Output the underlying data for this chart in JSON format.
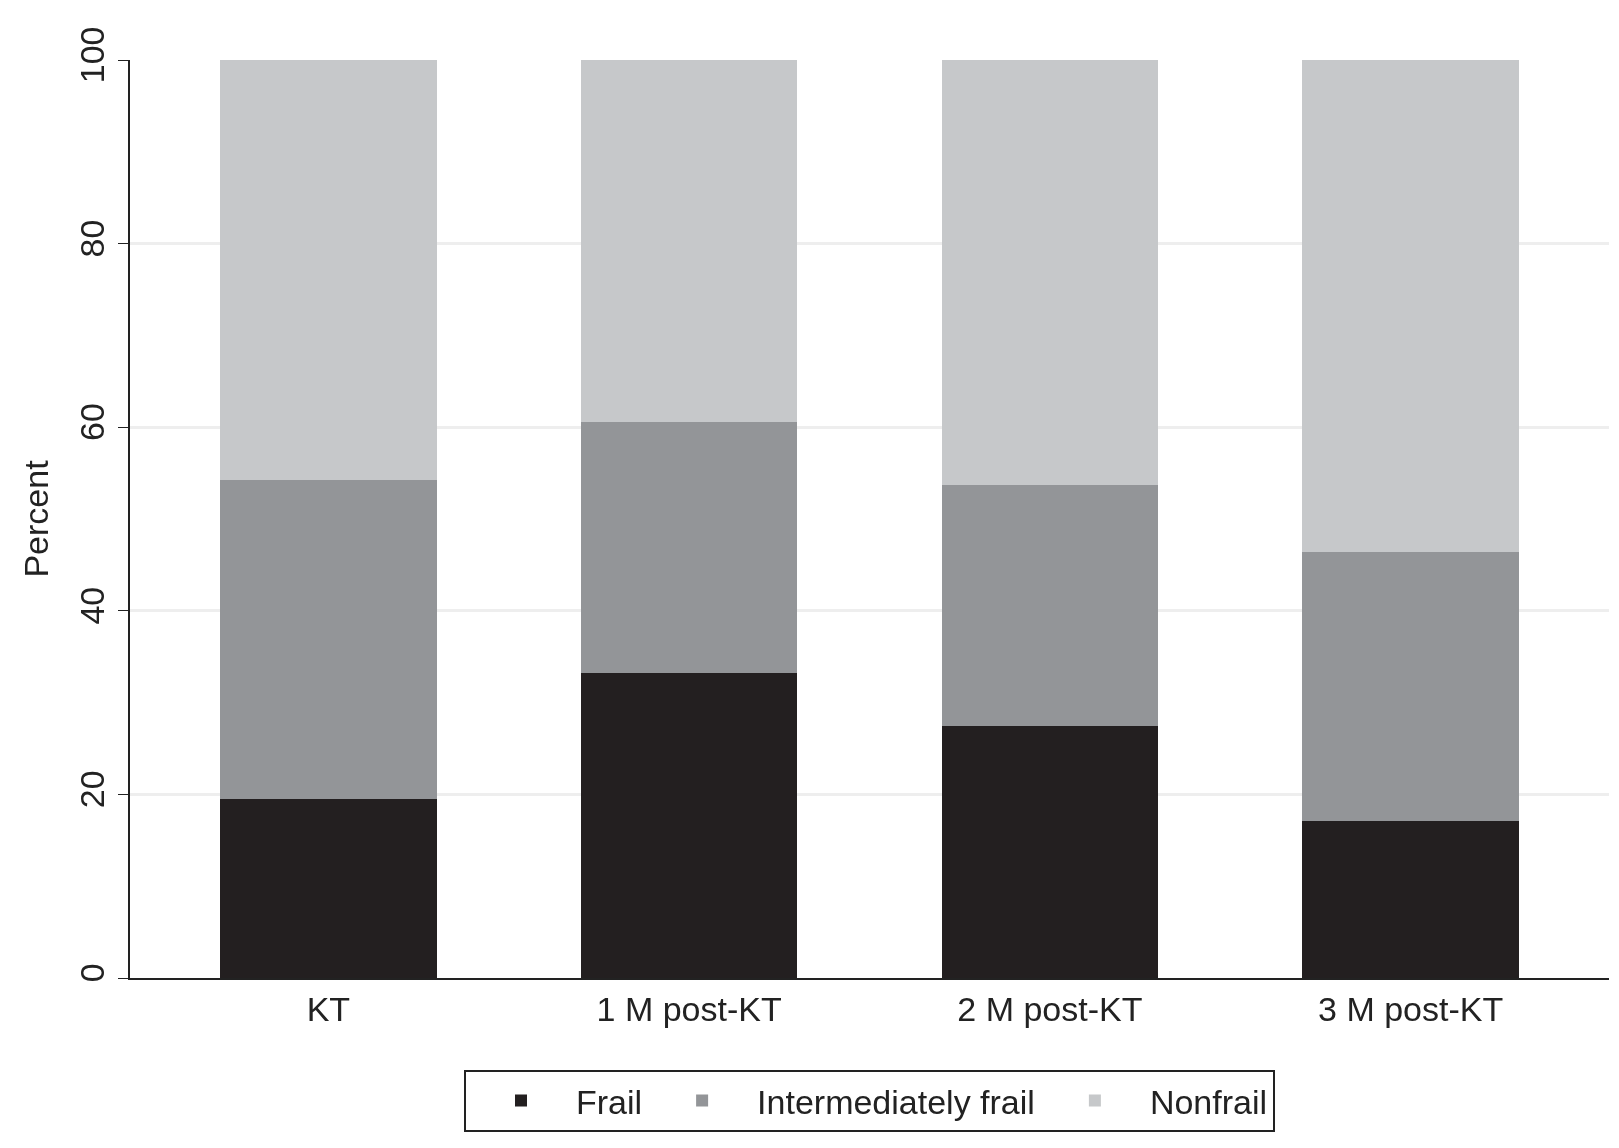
{
  "chart_data": {
    "type": "bar",
    "stacked": true,
    "ylabel": "Percent",
    "categories": [
      "KT",
      "1 M post-KT",
      "2 M post-KT",
      "3 M post-KT"
    ],
    "series": [
      {
        "name": "Frail",
        "color": "#231f20",
        "values": [
          19.5,
          33.2,
          27.5,
          17.1
        ]
      },
      {
        "name": "Intermediately frail",
        "color": "#939598",
        "values": [
          34.7,
          27.4,
          26.2,
          29.3
        ]
      },
      {
        "name": "Nonfrail",
        "color": "#c6c8ca",
        "values": [
          45.8,
          39.4,
          46.3,
          53.6
        ]
      }
    ],
    "ylim": [
      0,
      100
    ],
    "yticks": [
      0,
      20,
      40,
      60,
      80,
      100
    ],
    "grid": "y",
    "legend": "bottom"
  }
}
